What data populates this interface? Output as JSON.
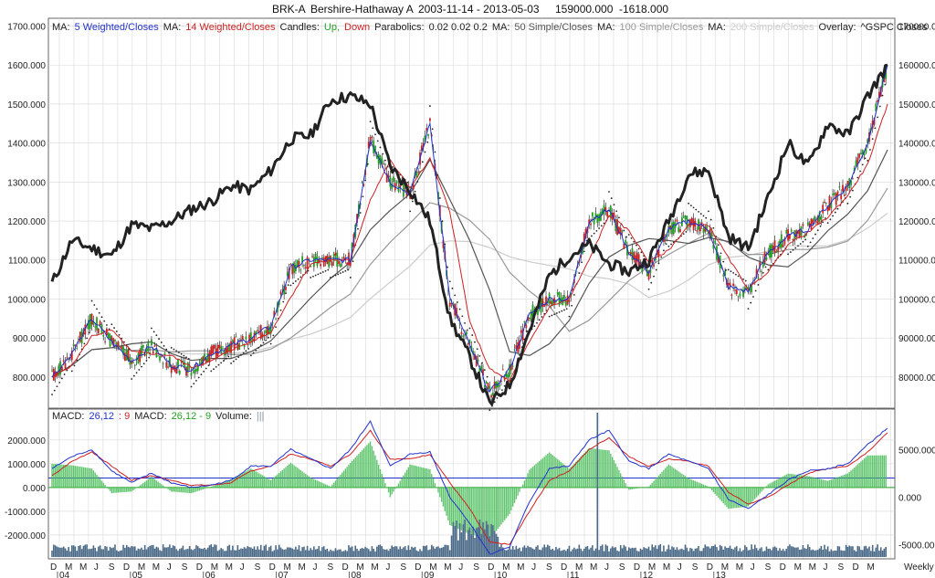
{
  "header": {
    "symbol": "BRK-A",
    "name": "Bershire-Hathaway A",
    "range": "2003-11-14 - 2013-05-03",
    "last": "159000.000",
    "change": "-1618.000"
  },
  "legend_price": [
    {
      "text": "MA:",
      "color": "#222222"
    },
    {
      "text": "5 Weighted/Closes",
      "color": "#2233cc"
    },
    {
      "text": "MA:",
      "color": "#222222"
    },
    {
      "text": "14 Weighted/Closes",
      "color": "#cc2222"
    },
    {
      "text": "Candles:",
      "color": "#222222"
    },
    {
      "text": "Up,",
      "color": "#22a022"
    },
    {
      "text": "Down",
      "color": "#cc2222"
    },
    {
      "text": "Parabolics:",
      "color": "#222222"
    },
    {
      "text": "0.02  0.02  0.2",
      "color": "#222222"
    },
    {
      "text": "MA:",
      "color": "#222222"
    },
    {
      "text": "50 Simple/Closes",
      "color": "#555555"
    },
    {
      "text": "MA:",
      "color": "#222222"
    },
    {
      "text": "100 Simple/Closes",
      "color": "#999999"
    },
    {
      "text": "MA:",
      "color": "#222222"
    },
    {
      "text": "200 Simple/Closes",
      "color": "#cccccc"
    },
    {
      "text": "Overlay:",
      "color": "#222222"
    },
    {
      "text": "^GSPC Closes",
      "color": "#222222"
    }
  ],
  "legend_macd": [
    {
      "text": "MACD:",
      "color": "#222222"
    },
    {
      "text": "26,12",
      "color": "#2233cc"
    },
    {
      "text": ": 9",
      "color": "#cc2222"
    },
    {
      "text": "MACD:",
      "color": "#222222"
    },
    {
      "text": "26,12 - 9",
      "color": "#22a022"
    },
    {
      "text": "Volume:",
      "color": "#222222"
    },
    {
      "text": "|||",
      "color": "#8899aa"
    }
  ],
  "chart_data": [
    {
      "type": "line",
      "title": "BRK-A Bershire-Hathaway A weekly price",
      "x": [
        "2003-11",
        "2004-03",
        "2004-06",
        "2004-09",
        "2004-12",
        "2005-03",
        "2005-06",
        "2005-09",
        "2005-12",
        "2006-03",
        "2006-06",
        "2006-09",
        "2006-12",
        "2007-03",
        "2007-06",
        "2007-09",
        "2007-12",
        "2008-03",
        "2008-06",
        "2008-09",
        "2008-10",
        "2008-11",
        "2009-02",
        "2009-03",
        "2009-06",
        "2009-09",
        "2009-12",
        "2010-01",
        "2010-02",
        "2010-05",
        "2010-08",
        "2010-11",
        "2011-02",
        "2011-05",
        "2011-08",
        "2011-09",
        "2011-12",
        "2012-03",
        "2012-06",
        "2012-09",
        "2012-12",
        "2013-02",
        "2013-05"
      ],
      "series": [
        {
          "name": "BRK-A",
          "role": "price",
          "values": [
            800,
            860,
            950,
            890,
            840,
            880,
            830,
            820,
            860,
            880,
            900,
            930,
            1080,
            1100,
            1100,
            1100,
            1410,
            1300,
            1270,
            1450,
            1000,
            880,
            760,
            820,
            960,
            1000,
            1000,
            1200,
            1230,
            1120,
            1070,
            1180,
            1200,
            1180,
            1030,
            1020,
            1120,
            1160,
            1180,
            1240,
            1290,
            1400,
            1600
          ]
        },
        {
          "name": "^GSPC Closes",
          "role": "overlay",
          "values": [
            104000,
            115000,
            113000,
            111000,
            119000,
            118000,
            120000,
            123000,
            125000,
            129000,
            128000,
            133000,
            141000,
            142000,
            151000,
            152000,
            150000,
            134000,
            128000,
            120000,
            95000,
            85000,
            73000,
            78000,
            92000,
            106000,
            111000,
            114000,
            109000,
            107000,
            110000,
            120000,
            132000,
            133000,
            116000,
            113000,
            126000,
            140000,
            134000,
            145000,
            142000,
            152000,
            160000
          ]
        }
      ],
      "ylim": [
        720,
        1720
      ],
      "ylim_right": [
        72000,
        172000
      ],
      "yticks": [
        "800.000",
        "900.000",
        "1000.000",
        "1100.000",
        "1200.000",
        "1300.000",
        "1400.000",
        "1500.000",
        "1600.000",
        "1700.000"
      ],
      "yticks_right": [
        "80000.000",
        "90000.000",
        "100000.000",
        "110000.000",
        "120000.000",
        "130000.000",
        "140000.000",
        "150000.000",
        "160000.000",
        "170000.000"
      ],
      "grid": true
    },
    {
      "type": "line",
      "title": "MACD 26,12 : 9",
      "x": [
        "2003-11",
        "2004-03",
        "2004-06",
        "2004-09",
        "2004-12",
        "2005-03",
        "2005-06",
        "2005-09",
        "2005-12",
        "2006-03",
        "2006-06",
        "2006-09",
        "2006-12",
        "2007-03",
        "2007-06",
        "2007-09",
        "2007-12",
        "2008-03",
        "2008-06",
        "2008-09",
        "2008-10",
        "2008-11",
        "2009-02",
        "2009-03",
        "2009-06",
        "2009-09",
        "2009-12",
        "2010-01",
        "2010-02",
        "2010-05",
        "2010-08",
        "2010-11",
        "2011-02",
        "2011-05",
        "2011-08",
        "2011-09",
        "2011-12",
        "2012-03",
        "2012-06",
        "2012-09",
        "2012-12",
        "2013-02",
        "2013-05"
      ],
      "series": [
        {
          "name": "MACD",
          "values": [
            800,
            1300,
            1600,
            700,
            200,
            600,
            200,
            0,
            100,
            300,
            900,
            900,
            1600,
            1200,
            800,
            1600,
            2800,
            900,
            1400,
            1500,
            -400,
            -1500,
            -2800,
            -2500,
            -600,
            800,
            900,
            2000,
            2400,
            1100,
            800,
            1400,
            1100,
            800,
            -500,
            -900,
            -300,
            300,
            700,
            800,
            1000,
            1800,
            2500
          ]
        },
        {
          "name": "Signal",
          "values": [
            500,
            1100,
            1500,
            900,
            300,
            500,
            300,
            100,
            100,
            200,
            700,
            900,
            1400,
            1200,
            900,
            1400,
            2400,
            1200,
            1200,
            1400,
            200,
            -900,
            -2300,
            -2400,
            -1000,
            300,
            700,
            1600,
            2100,
            1300,
            900,
            1200,
            1100,
            900,
            -200,
            -700,
            -400,
            100,
            600,
            800,
            900,
            1500,
            2300
          ]
        }
      ],
      "ylim": [
        -3000,
        3300
      ],
      "yticks": [
        "-2000.000",
        "-1000.000",
        "0.000",
        "1000.000",
        "2000.000"
      ],
      "yticks_right": [
        "-5000.000",
        "0.000",
        "5000.000"
      ],
      "grid": true
    }
  ],
  "x_axis": {
    "months": [
      "D",
      "M",
      "M",
      "J",
      "S",
      "D",
      "M",
      "M",
      "J",
      "S",
      "D",
      "M",
      "M",
      "J",
      "S",
      "D",
      "M",
      "M",
      "J",
      "S",
      "D",
      "M",
      "M",
      "J",
      "S",
      "D",
      "M",
      "M",
      "J",
      "S",
      "D",
      "M",
      "M",
      "J",
      "S",
      "D",
      "M",
      "M",
      "J",
      "S",
      "D",
      "M",
      "M",
      "J",
      "S",
      "D",
      "M",
      "M",
      "J",
      "S",
      "D",
      "M",
      "M",
      "J",
      "S",
      "D",
      "M"
    ],
    "years": [
      "04",
      "05",
      "06",
      "07",
      "08",
      "09",
      "10",
      "11",
      "12",
      "13"
    ],
    "period": "Weekly"
  }
}
